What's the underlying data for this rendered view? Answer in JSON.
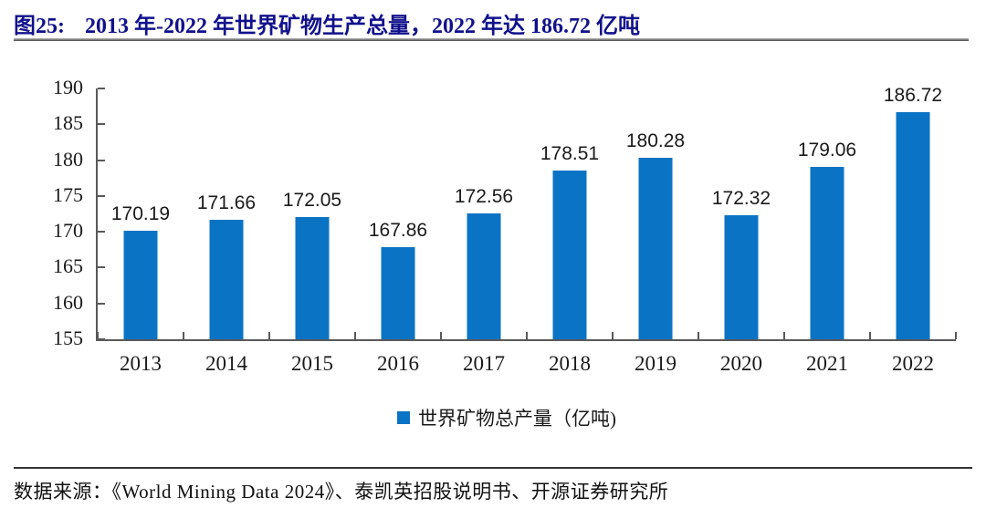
{
  "figure_header": {
    "label": "图25:",
    "title": "2013 年-2022 年世界矿物生产总量，2022 年达 186.72 亿吨"
  },
  "chart_data": {
    "type": "bar",
    "title": "2013 年-2022 年世界矿物生产总量，2022 年达 186.72 亿吨",
    "categories": [
      "2013",
      "2014",
      "2015",
      "2016",
      "2017",
      "2018",
      "2019",
      "2020",
      "2021",
      "2022"
    ],
    "values": [
      170.19,
      171.66,
      172.05,
      167.86,
      172.56,
      178.51,
      180.28,
      172.32,
      179.06,
      186.72
    ],
    "series_name": "世界矿物总产量（亿吨)",
    "xlabel": "",
    "ylabel": "",
    "ylim": [
      155,
      190
    ],
    "ytick_step": 5,
    "yticks": [
      155,
      160,
      165,
      170,
      175,
      180,
      185,
      190
    ],
    "grid": false,
    "value_labels": true,
    "value_decimals": 2,
    "legend_position": "bottom"
  },
  "footer": {
    "source": "数据来源：《World Mining Data 2024》、泰凯英招股说明书、开源证券研究所"
  },
  "colors": {
    "bar": "#0B73C4",
    "title_text": "#11118C",
    "axis": "#595959",
    "value_label_text": "#1A1A1A"
  }
}
